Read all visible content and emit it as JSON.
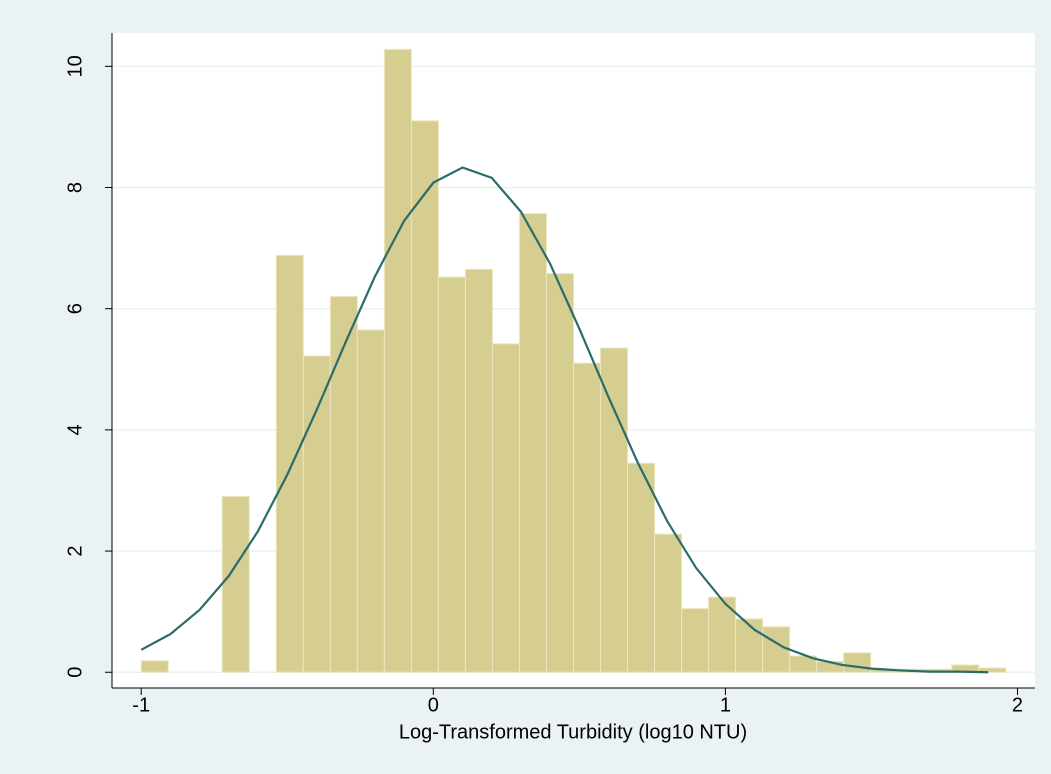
{
  "chart_data": {
    "type": "histogram",
    "x_label": "Log-Transformed Turbidity (log10 NTU)",
    "bins": [
      -1,
      -0.9075,
      -0.815,
      -0.7225,
      -0.63,
      -0.5375,
      -0.445,
      -0.3525,
      -0.26,
      -0.1675,
      -0.075,
      0.0175,
      0.11,
      0.2025,
      0.295,
      0.3875,
      0.48,
      0.5725,
      0.665,
      0.7575,
      0.85,
      0.9425,
      1.035,
      1.1275,
      1.22,
      1.3125,
      1.405,
      1.4975,
      1.59,
      1.6825,
      1.775,
      1.8675,
      1.96
    ],
    "values": [
      0.19,
      0,
      0,
      2.9,
      0,
      6.88,
      5.22,
      6.2,
      5.65,
      10.28,
      9.1,
      6.52,
      6.65,
      5.42,
      7.57,
      6.58,
      5.1,
      5.35,
      3.45,
      2.28,
      1.05,
      1.24,
      0.88,
      0.75,
      0.27,
      0.18,
      0.32,
      0.05,
      0.05,
      0.05,
      0.12,
      0.07
    ],
    "color": "#d6ce90",
    "density_curve": {
      "type": "line",
      "x": [
        -1,
        -0.9,
        -0.8,
        -0.7,
        -0.6,
        -0.5,
        -0.4,
        -0.3,
        -0.2,
        -0.1,
        0,
        0.1,
        0.2,
        0.3,
        0.4,
        0.5,
        0.6,
        0.7,
        0.8,
        0.9,
        1,
        1.1,
        1.2,
        1.3,
        1.4,
        1.5,
        1.6,
        1.7,
        1.8,
        1.9
      ],
      "values": [
        0.37,
        0.63,
        1.03,
        1.59,
        2.33,
        3.26,
        4.32,
        5.45,
        6.53,
        7.45,
        8.08,
        8.33,
        8.16,
        7.6,
        6.74,
        5.67,
        4.54,
        3.46,
        2.5,
        1.72,
        1.13,
        0.7,
        0.41,
        0.23,
        0.12,
        0.06,
        0.03,
        0.01,
        0.01,
        0
      ],
      "color": "#2a6b6b"
    },
    "xlim": [
      -1.1,
      2.06
    ],
    "ylim": [
      -0.26,
      10.55
    ],
    "xticks": [
      -1,
      0,
      1,
      2
    ],
    "yticks": [
      0,
      2,
      4,
      6,
      8,
      10
    ],
    "grid": true
  }
}
